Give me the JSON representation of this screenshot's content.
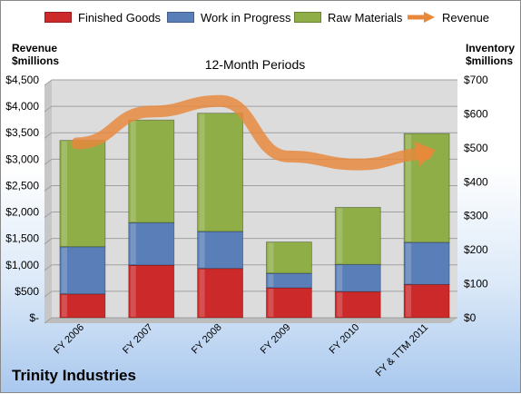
{
  "legend": {
    "finished": "Finished Goods",
    "wip": "Work in Progress",
    "raw": "Raw Materials",
    "revenue": "Revenue"
  },
  "left_axis_title": [
    "Revenue",
    "$millions"
  ],
  "right_axis_title": [
    "Inventory",
    "$millions"
  ],
  "company": "Trinity Industries",
  "colors": {
    "finished": "#cc2a2a",
    "wip": "#5a7fb8",
    "raw": "#8fae48",
    "revenue": "#e8883a",
    "plot_bg": "#dcdcdc"
  },
  "chart_data": {
    "type": "bar",
    "stacked": true,
    "title": "12-Month Periods",
    "categories": [
      "FY 2006",
      "FY 2007",
      "FY 2008",
      "FY 2009",
      "FY 2010",
      "FY & TTM 2011"
    ],
    "series": [
      {
        "name": "Finished Goods",
        "axis": "right",
        "values": [
          70,
          155,
          145,
          88,
          77,
          98
        ]
      },
      {
        "name": "Work in Progress",
        "axis": "right",
        "values": [
          139,
          125,
          109,
          43,
          80,
          124
        ]
      },
      {
        "name": "Raw Materials",
        "axis": "right",
        "values": [
          313,
          302,
          348,
          92,
          168,
          320
        ]
      },
      {
        "name": "Revenue",
        "axis": "left",
        "type": "line",
        "values": [
          3300,
          3900,
          4100,
          3050,
          2900,
          3100
        ]
      }
    ],
    "left_axis": {
      "ylim": [
        0,
        4500
      ],
      "ticks": [
        "$-",
        "$500",
        "$1,000",
        "$1,500",
        "$2,000",
        "$2,500",
        "$3,000",
        "$3,500",
        "$4,000",
        "$4,500"
      ]
    },
    "right_axis": {
      "ylim": [
        0,
        700
      ],
      "ticks": [
        "$0",
        "$100",
        "$200",
        "$300",
        "$400",
        "$500",
        "$600",
        "$700"
      ]
    },
    "grid": true,
    "legend_position": "top"
  }
}
